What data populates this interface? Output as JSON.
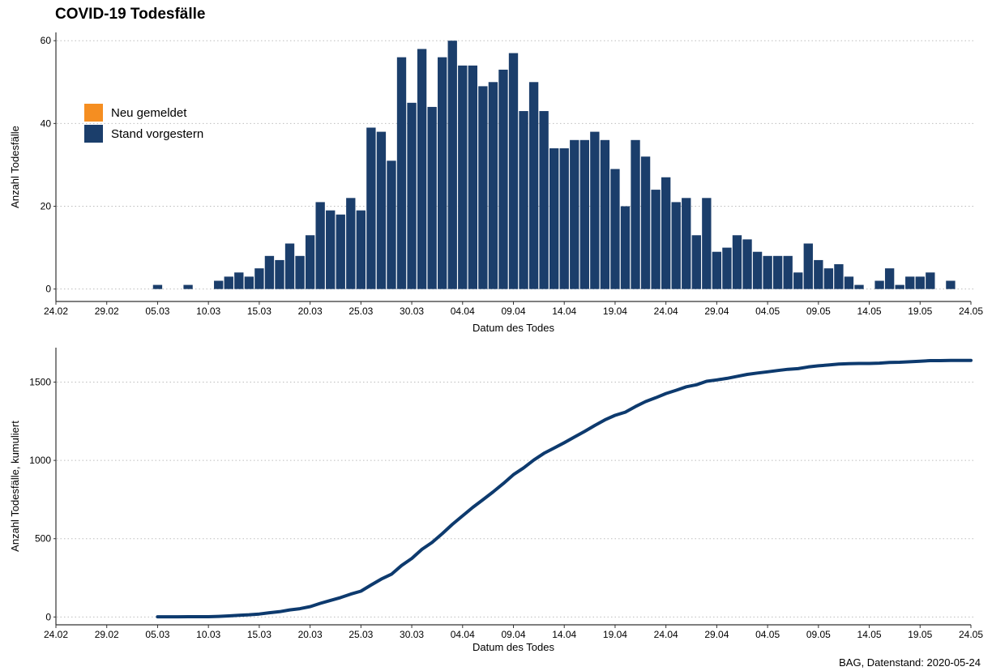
{
  "title": "COVID-19 Todesfälle",
  "caption": "BAG, Datenstand: 2020-05-24",
  "colors": {
    "bar": "#1b3e6b",
    "new": "#f58e21",
    "line": "#0d3a6e",
    "grid": "#bdbdbd"
  },
  "chart_data": [
    {
      "type": "bar",
      "stacked": true,
      "title": "",
      "xlabel": "Datum des Todes",
      "ylabel": "Anzahl Todesfälle",
      "ylim": [
        -3,
        62
      ],
      "xlim": [
        "2020-02-24",
        "2020-05-24"
      ],
      "yticks": [
        0,
        20,
        40,
        60
      ],
      "xticks": [
        "24.02",
        "29.02",
        "05.03",
        "10.03",
        "15.03",
        "20.03",
        "25.03",
        "30.03",
        "04.04",
        "09.04",
        "14.04",
        "19.04",
        "24.04",
        "29.04",
        "04.05",
        "09.05",
        "14.05",
        "19.05",
        "24.05"
      ],
      "grid": "horizontal dotted",
      "legend": {
        "position": "top-left",
        "items": [
          {
            "name": "Neu gemeldet",
            "color": "#f58e21"
          },
          {
            "name": "Stand vorgestern",
            "color": "#1b3e6b"
          }
        ]
      },
      "start_date": "2020-03-05",
      "series": [
        {
          "name": "Stand vorgestern",
          "values": [
            1,
            0,
            0,
            1,
            0,
            0,
            2,
            3,
            4,
            3,
            5,
            8,
            7,
            11,
            8,
            13,
            21,
            19,
            18,
            22,
            19,
            39,
            38,
            31,
            56,
            45,
            58,
            44,
            56,
            60,
            54,
            54,
            49,
            50,
            53,
            57,
            43,
            50,
            43,
            34,
            34,
            36,
            36,
            38,
            36,
            29,
            20,
            36,
            32,
            24,
            27,
            21,
            22,
            13,
            22,
            9,
            10,
            13,
            12,
            9,
            8,
            8,
            8,
            4,
            11,
            7,
            5,
            6,
            3,
            1,
            0,
            2,
            5,
            1,
            3,
            3,
            4,
            0,
            2
          ]
        },
        {
          "name": "Neu gemeldet",
          "values": []
        }
      ]
    },
    {
      "type": "line",
      "title": "",
      "xlabel": "Datum des Todes",
      "ylabel": "Anzahl Todesfälle, kumuliert",
      "ylim": [
        -50,
        1720
      ],
      "xlim": [
        "2020-02-24",
        "2020-05-24"
      ],
      "yticks": [
        0,
        500,
        1000,
        1500
      ],
      "xticks": [
        "24.02",
        "29.02",
        "05.03",
        "10.03",
        "15.03",
        "20.03",
        "25.03",
        "30.03",
        "04.04",
        "09.04",
        "14.04",
        "19.04",
        "24.04",
        "29.04",
        "04.05",
        "09.05",
        "14.05",
        "19.05",
        "24.05"
      ],
      "grid": "horizontal dotted",
      "start_date": "2020-03-05",
      "end_date": "2020-05-24",
      "series": [
        {
          "name": "",
          "values": "cumulative sum of daily deaths"
        }
      ]
    }
  ]
}
